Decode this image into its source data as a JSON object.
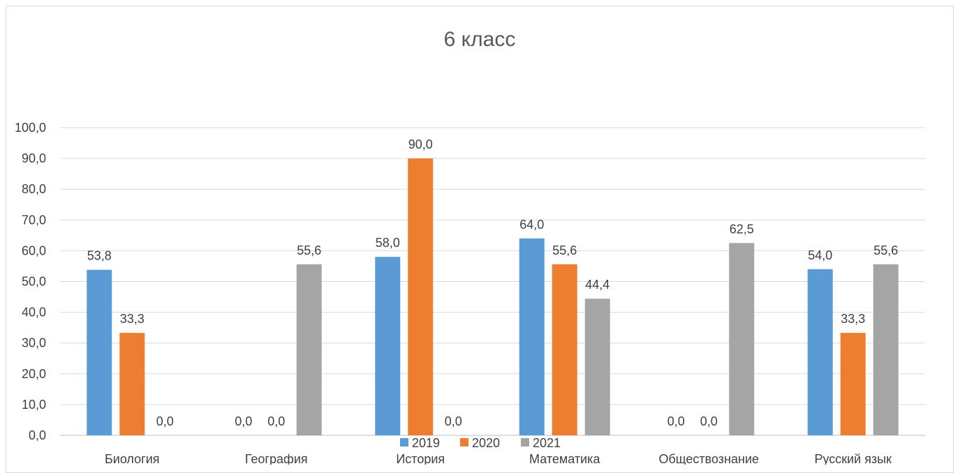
{
  "chart_data": {
    "type": "bar",
    "title": "6 класс",
    "categories": [
      "Биология",
      "География",
      "История",
      "Математика",
      "Обществознание",
      "Русский язык"
    ],
    "series": [
      {
        "name": "2019",
        "color": "#5b9bd5",
        "values": [
          53.8,
          0.0,
          58.0,
          64.0,
          0.0,
          54.0
        ]
      },
      {
        "name": "2020",
        "color": "#ed7d31",
        "values": [
          33.3,
          0.0,
          90.0,
          55.6,
          0.0,
          33.3
        ]
      },
      {
        "name": "2021",
        "color": "#a5a5a5",
        "values": [
          0.0,
          55.6,
          0.0,
          44.4,
          62.5,
          55.6
        ]
      }
    ],
    "ylim": [
      0,
      100
    ],
    "yticks": [
      "0,0",
      "10,0",
      "20,0",
      "30,0",
      "40,0",
      "50,0",
      "60,0",
      "70,0",
      "80,0",
      "90,0",
      "100,0"
    ],
    "data_labels": [
      [
        "53,8",
        "0,0",
        "58,0",
        "64,0",
        "0,0",
        "54,0"
      ],
      [
        "33,3",
        "0,0",
        "90,0",
        "55,6",
        "0,0",
        "33,3"
      ],
      [
        "0,0",
        "55,6",
        "0,0",
        "44,4",
        "62,5",
        "55,6"
      ]
    ],
    "grid": true,
    "legend": "bottom"
  }
}
